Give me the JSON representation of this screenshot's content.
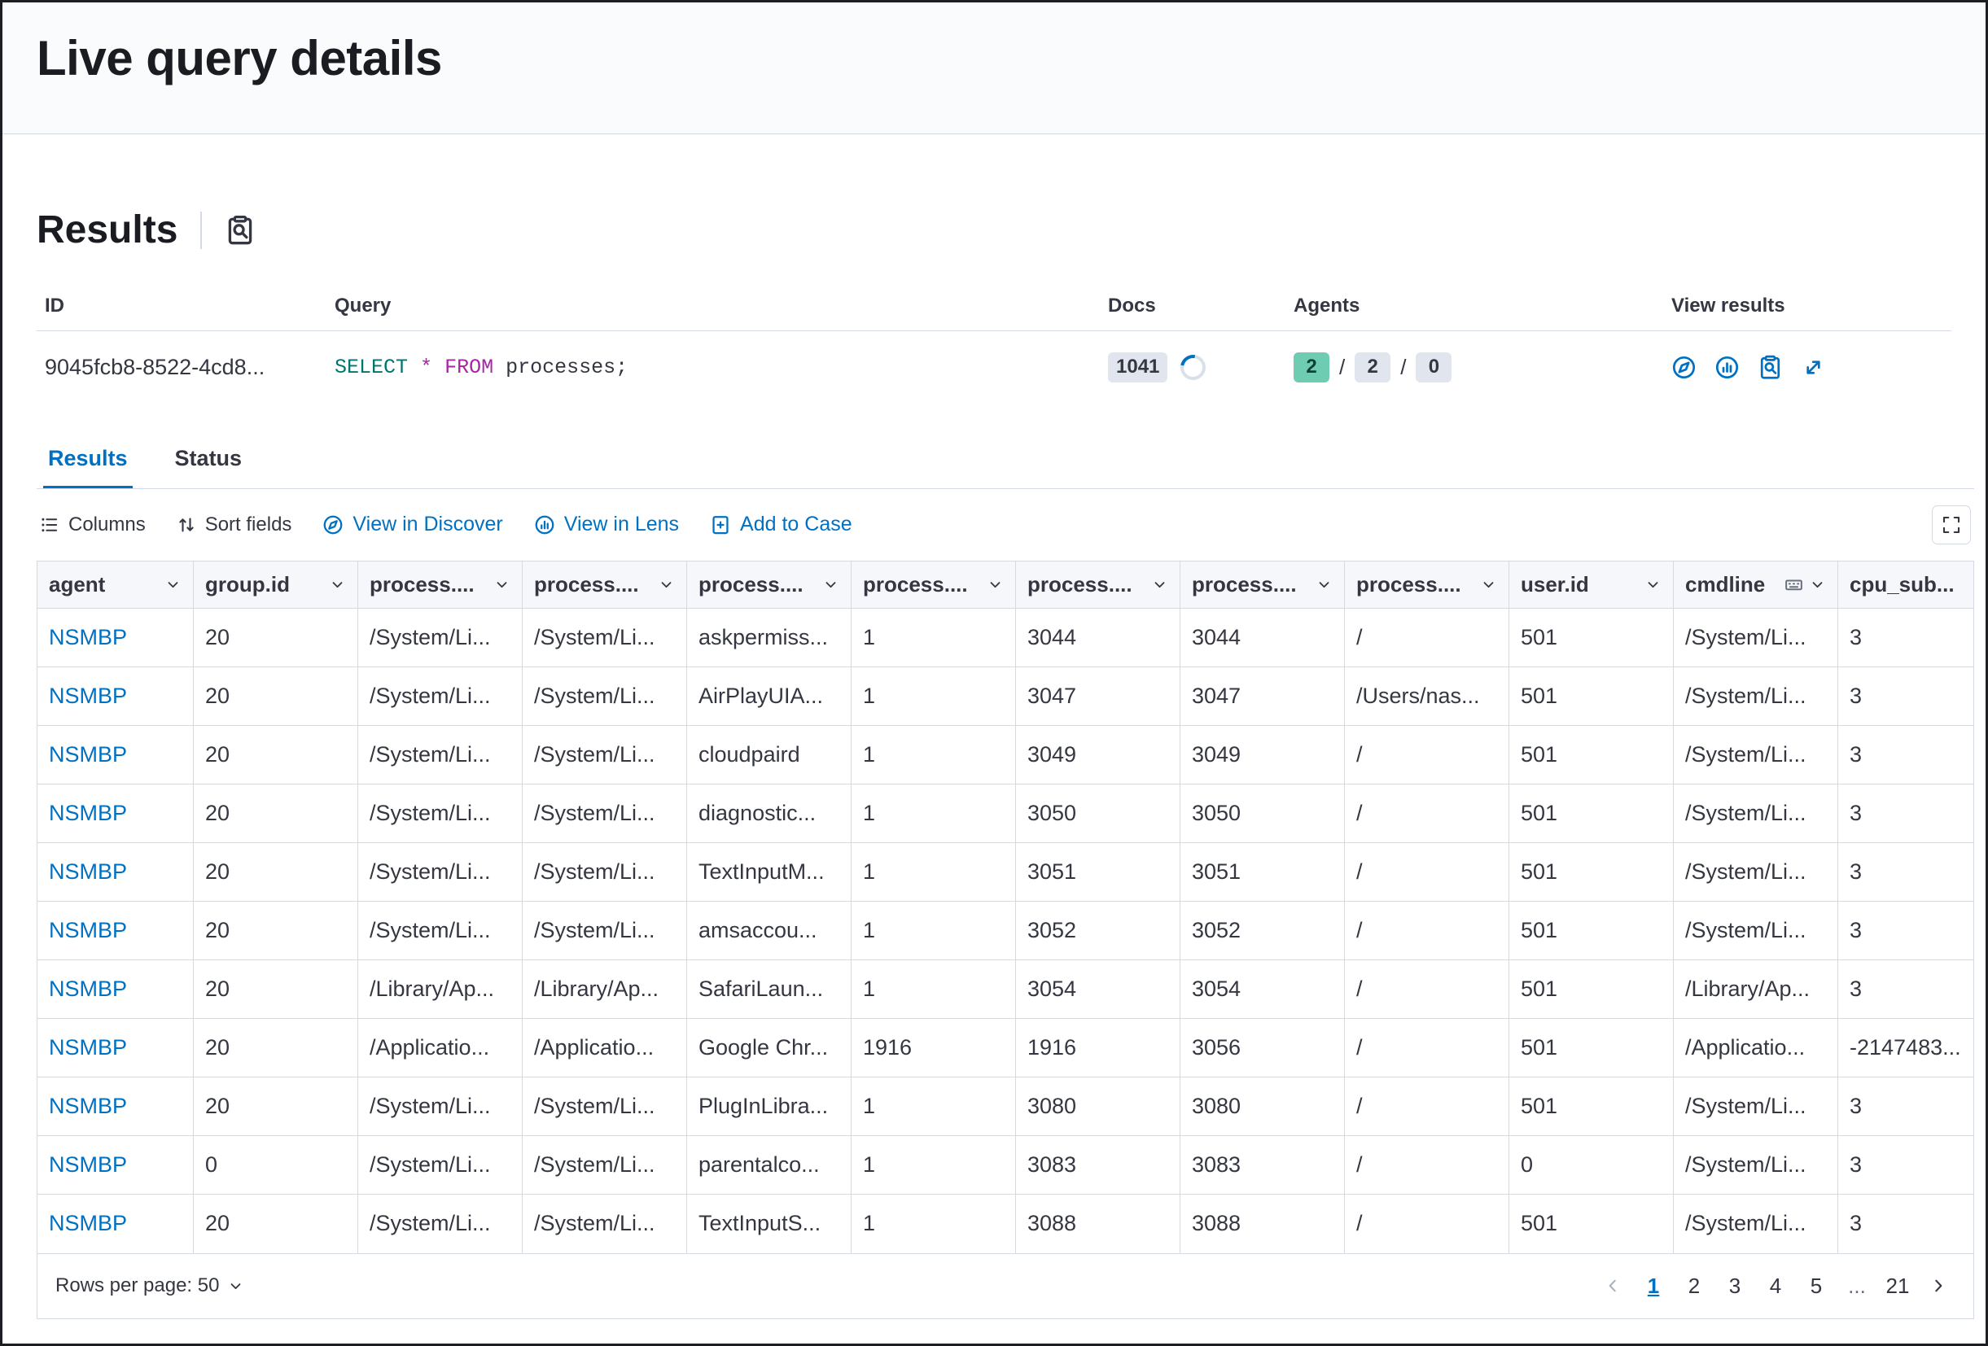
{
  "colors": {
    "accent_blue": "#0071C2",
    "text": "#343741",
    "border": "#D3DAE6",
    "badge_gray_bg": "#E0E5EE",
    "badge_green_bg": "#6DCCB1",
    "sql_select_color": "#00756F",
    "sql_from_color": "#A626A4",
    "header_band_bg": "#FAFBFD",
    "grid_header_bg": "#F5F7FA"
  },
  "header": {
    "title": "Live query details"
  },
  "results_section": {
    "heading": "Results"
  },
  "summary_table": {
    "headers": {
      "id": "ID",
      "query": "Query",
      "docs": "Docs",
      "agents": "Agents",
      "view_results": "View results"
    },
    "row": {
      "id": "9045fcb8-8522-4cd8...",
      "query_tokens": {
        "select": "SELECT",
        "star": "*",
        "from": "FROM",
        "rest": "processes;"
      },
      "docs_badge": "1041",
      "agents": {
        "success_count": "2",
        "separator": "/",
        "pending_count": "2",
        "failed_count": "0"
      }
    }
  },
  "tabs": {
    "results": "Results",
    "status": "Status"
  },
  "toolbar": {
    "columns": "Columns",
    "sort_fields": "Sort fields",
    "view_in_discover": "View in Discover",
    "view_in_lens": "View in Lens",
    "add_to_case": "Add to Case"
  },
  "grid": {
    "columns": [
      {
        "key": "agent",
        "label": "agent"
      },
      {
        "key": "group-id",
        "label": "group.id"
      },
      {
        "key": "process-1",
        "label": "process...."
      },
      {
        "key": "process-2",
        "label": "process...."
      },
      {
        "key": "process-3",
        "label": "process...."
      },
      {
        "key": "process-4",
        "label": "process...."
      },
      {
        "key": "process-5",
        "label": "process...."
      },
      {
        "key": "process-6",
        "label": "process...."
      },
      {
        "key": "process-7",
        "label": "process...."
      },
      {
        "key": "user-id",
        "label": "user.id"
      },
      {
        "key": "cmdline",
        "label": "cmdline",
        "extra_icon": "keyboard-icon"
      },
      {
        "key": "cpu-subtype",
        "label": "cpu_sub..."
      }
    ],
    "rows": [
      [
        "NSMBP",
        "20",
        "/System/Li...",
        "/System/Li...",
        "askpermiss...",
        "1",
        "3044",
        "3044",
        "/",
        "501",
        "/System/Li...",
        "3"
      ],
      [
        "NSMBP",
        "20",
        "/System/Li...",
        "/System/Li...",
        "AirPlayUIA...",
        "1",
        "3047",
        "3047",
        "/Users/nas...",
        "501",
        "/System/Li...",
        "3"
      ],
      [
        "NSMBP",
        "20",
        "/System/Li...",
        "/System/Li...",
        "cloudpaird",
        "1",
        "3049",
        "3049",
        "/",
        "501",
        "/System/Li...",
        "3"
      ],
      [
        "NSMBP",
        "20",
        "/System/Li...",
        "/System/Li...",
        "diagnostic...",
        "1",
        "3050",
        "3050",
        "/",
        "501",
        "/System/Li...",
        "3"
      ],
      [
        "NSMBP",
        "20",
        "/System/Li...",
        "/System/Li...",
        "TextInputM...",
        "1",
        "3051",
        "3051",
        "/",
        "501",
        "/System/Li...",
        "3"
      ],
      [
        "NSMBP",
        "20",
        "/System/Li...",
        "/System/Li...",
        "amsaccou...",
        "1",
        "3052",
        "3052",
        "/",
        "501",
        "/System/Li...",
        "3"
      ],
      [
        "NSMBP",
        "20",
        "/Library/Ap...",
        "/Library/Ap...",
        "SafariLaun...",
        "1",
        "3054",
        "3054",
        "/",
        "501",
        "/Library/Ap...",
        "3"
      ],
      [
        "NSMBP",
        "20",
        "/Applicatio...",
        "/Applicatio...",
        "Google Chr...",
        "1916",
        "1916",
        "3056",
        "/",
        "501",
        "/Applicatio...",
        "-2147483..."
      ],
      [
        "NSMBP",
        "20",
        "/System/Li...",
        "/System/Li...",
        "PlugInLibra...",
        "1",
        "3080",
        "3080",
        "/",
        "501",
        "/System/Li...",
        "3"
      ],
      [
        "NSMBP",
        "0",
        "/System/Li...",
        "/System/Li...",
        "parentalco...",
        "1",
        "3083",
        "3083",
        "/",
        "0",
        "/System/Li...",
        "3"
      ],
      [
        "NSMBP",
        "20",
        "/System/Li...",
        "/System/Li...",
        "TextInputS...",
        "1",
        "3088",
        "3088",
        "/",
        "501",
        "/System/Li...",
        "3"
      ]
    ]
  },
  "footer": {
    "rows_per_page": "Rows per page: 50",
    "pagination": {
      "pages": [
        "1",
        "2",
        "3",
        "4",
        "5",
        "...",
        "21"
      ],
      "active_page": "1"
    }
  },
  "icons": {
    "inspect-icon": "clipboard-with-magnifier",
    "discover-icon": "compass",
    "lens-icon": "circle-with-bars",
    "popout-icon": "diagonal-double-arrow",
    "columns-icon": "list-lines-with-dots",
    "sort-icon": "up-down-arrows",
    "case-icon": "document-with-plus",
    "fullscreen-icon": "corner-brackets",
    "keyboard-icon": "keyboard",
    "chevron-down-icon": "v-caret",
    "chevron-left-icon": "left-caret",
    "chevron-right-icon": "right-caret",
    "loading-spinner": "blue-arc-ring"
  }
}
